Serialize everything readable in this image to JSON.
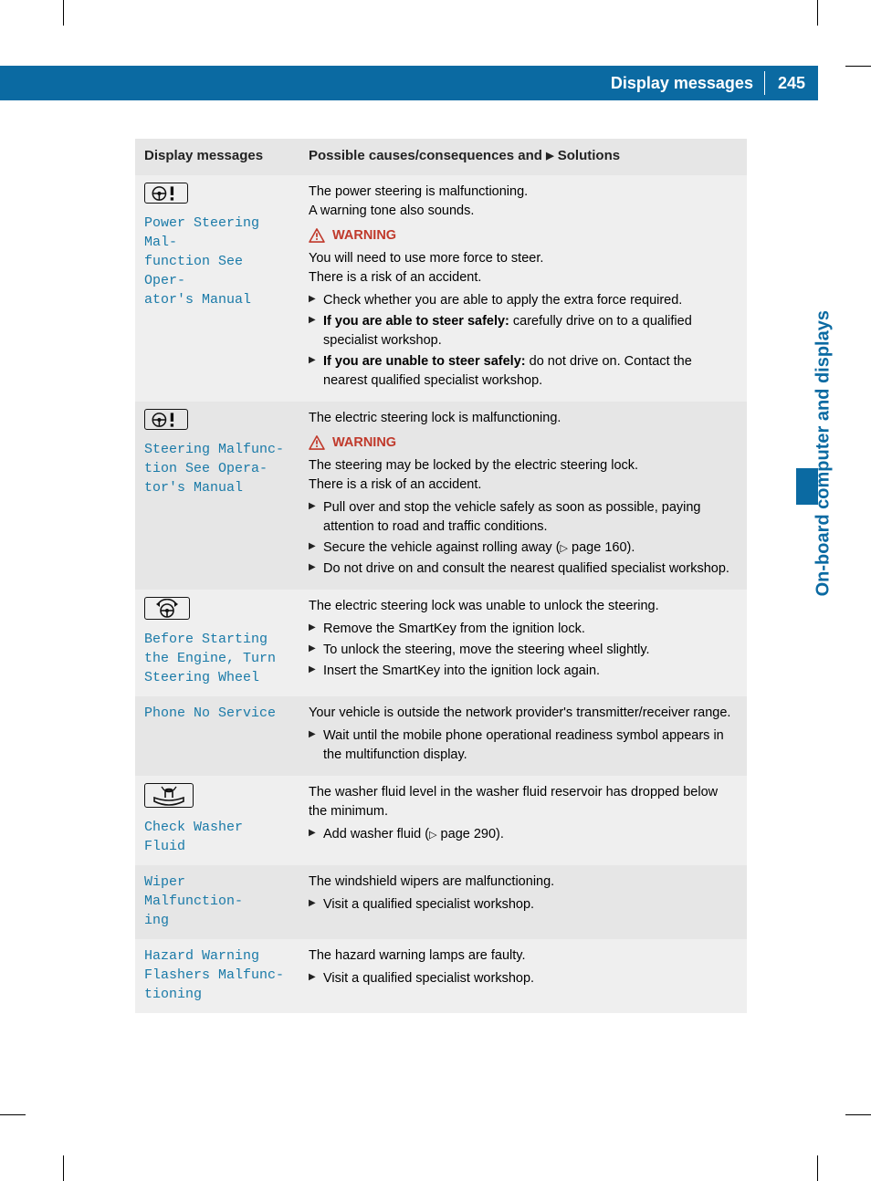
{
  "colors": {
    "brand_blue": "#0b6aa2",
    "msg_blue": "#1a7aa8",
    "warning_red": "#c0392b",
    "row_bg_a": "#e6e6e6",
    "row_bg_b": "#efefef",
    "text": "#222222"
  },
  "header": {
    "title": "Display messages",
    "page_number": "245"
  },
  "side_tab": "On-board computer and displays",
  "table_headers": {
    "left": "Display messages",
    "right_prefix": "Possible causes/consequences and ",
    "right_suffix": " Solutions"
  },
  "rows": [
    {
      "icon": "steering-alert",
      "display_lines": [
        "Power Steering Mal‐",
        "function See Oper‐",
        "ator's Manual"
      ],
      "intro": [
        "The power steering is malfunctioning.",
        "A warning tone also sounds."
      ],
      "warning": true,
      "warning_body": [
        "You will need to use more force to steer.",
        "There is a risk of an accident."
      ],
      "bullets": [
        {
          "text": "Check whether you are able to apply the extra force required."
        },
        {
          "bold_prefix": "If you are able to steer safely:",
          "text": " carefully drive on to a qualified specialist workshop."
        },
        {
          "bold_prefix": "If you are unable to steer safely:",
          "text": " do not drive on. Contact the nearest qualified specialist workshop."
        }
      ]
    },
    {
      "icon": "steering-alert",
      "display_lines": [
        "Steering Malfunc‐",
        "tion See Opera‐",
        "tor's Manual"
      ],
      "intro": [
        "The electric steering lock is malfunctioning."
      ],
      "warning": true,
      "warning_body": [
        "The steering may be locked by the electric steering lock.",
        "There is a risk of an accident."
      ],
      "bullets": [
        {
          "text": "Pull over and stop the vehicle safely as soon as possible, paying attention to road and traffic conditions."
        },
        {
          "text": "Secure the vehicle against rolling away (",
          "page_ref": "page 160",
          "text_after": ")."
        },
        {
          "text": "Do not drive on and consult the nearest qualified specialist workshop."
        }
      ]
    },
    {
      "icon": "steering-turn",
      "display_lines": [
        "Before Starting",
        "the Engine, Turn",
        "Steering Wheel"
      ],
      "intro": [
        "The electric steering lock was unable to unlock the steering."
      ],
      "bullets": [
        {
          "text": "Remove the SmartKey from the ignition lock."
        },
        {
          "text": "To unlock the steering, move the steering wheel slightly."
        },
        {
          "text": "Insert the SmartKey into the ignition lock again."
        }
      ]
    },
    {
      "display_lines": [
        "Phone No Service"
      ],
      "intro": [
        "Your vehicle is outside the network provider's transmitter/receiver range."
      ],
      "bullets": [
        {
          "text": "Wait until the mobile phone operational readiness symbol appears in the multifunction display."
        }
      ]
    },
    {
      "icon": "washer-fluid",
      "display_lines": [
        "Check Washer Fluid"
      ],
      "intro": [
        "The washer fluid level in the washer fluid reservoir has dropped below the minimum."
      ],
      "bullets": [
        {
          "text": "Add washer fluid (",
          "page_ref": "page 290",
          "text_after": ")."
        }
      ]
    },
    {
      "display_lines": [
        "Wiper Malfunction‐",
        "ing"
      ],
      "intro": [
        "The windshield wipers are malfunctioning."
      ],
      "bullets": [
        {
          "text": "Visit a qualified specialist workshop."
        }
      ]
    },
    {
      "display_lines": [
        "Hazard Warning",
        "Flashers Malfunc‐",
        "tioning"
      ],
      "intro": [
        "The hazard warning lamps are faulty."
      ],
      "bullets": [
        {
          "text": "Visit a qualified specialist workshop."
        }
      ]
    }
  ],
  "warning_label": "WARNING"
}
